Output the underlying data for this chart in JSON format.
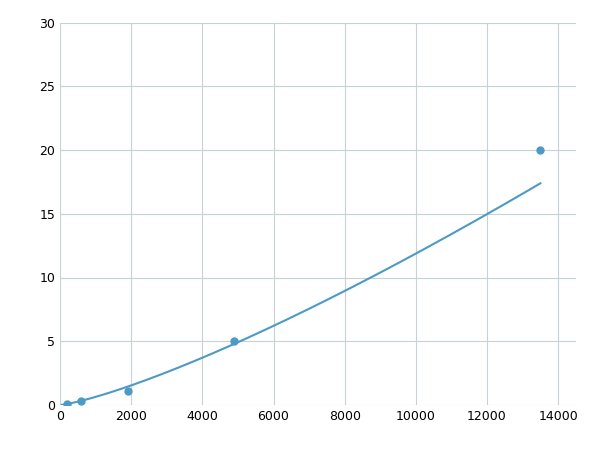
{
  "x_points": [
    200,
    600,
    1900,
    4900,
    13500
  ],
  "y_points": [
    0.1,
    0.3,
    1.1,
    5.0,
    20.0
  ],
  "line_color": "#4d9ac5",
  "marker_color": "#4d9ac5",
  "marker_size": 5,
  "line_width": 1.5,
  "xlim": [
    0,
    14500
  ],
  "ylim": [
    0,
    30
  ],
  "xticks": [
    0,
    2000,
    4000,
    6000,
    8000,
    10000,
    12000,
    14000
  ],
  "yticks": [
    0,
    5,
    10,
    15,
    20,
    25,
    30
  ],
  "grid_color": "#c8d0d8",
  "background_color": "#ffffff",
  "tick_label_fontsize": 9,
  "figure_width": 6.0,
  "figure_height": 4.5,
  "dpi": 100
}
